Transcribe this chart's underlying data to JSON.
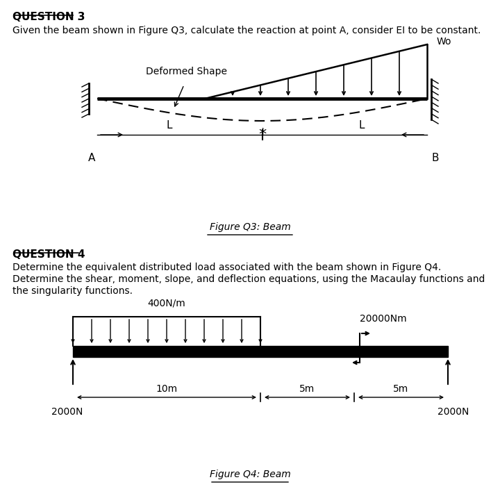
{
  "bg_color": "#ffffff",
  "q3_title": "QUESTION 3",
  "q3_text": "Given the beam shown in Figure Q3, calculate the reaction at point A, consider EI to be constant.",
  "q3_fig_label": "Figure Q3: Beam",
  "q3_deformed_label": "Deformed Shape",
  "q3_Wo_label": "Wo",
  "q3_A_label": "A",
  "q3_B_label": "B",
  "q3_L1_label": "L",
  "q3_L2_label": "L",
  "q4_title": "QUESTION 4",
  "q4_text1": "Determine the equivalent distributed load associated with the beam shown in Figure Q4.",
  "q4_text2": "Determine the shear, moment, slope, and deflection equations, using the Macaulay functions and",
  "q4_text3": "the singularity functions.",
  "q4_fig_label": "Figure Q4: Beam",
  "q4_400label": "400N/m",
  "q4_20000label": "20000Nm",
  "q4_10m": "10m",
  "q4_5m1": "5m",
  "q4_5m2": "5m",
  "q4_2000N_left": "2000N",
  "q4_2000N_right": "2000N"
}
